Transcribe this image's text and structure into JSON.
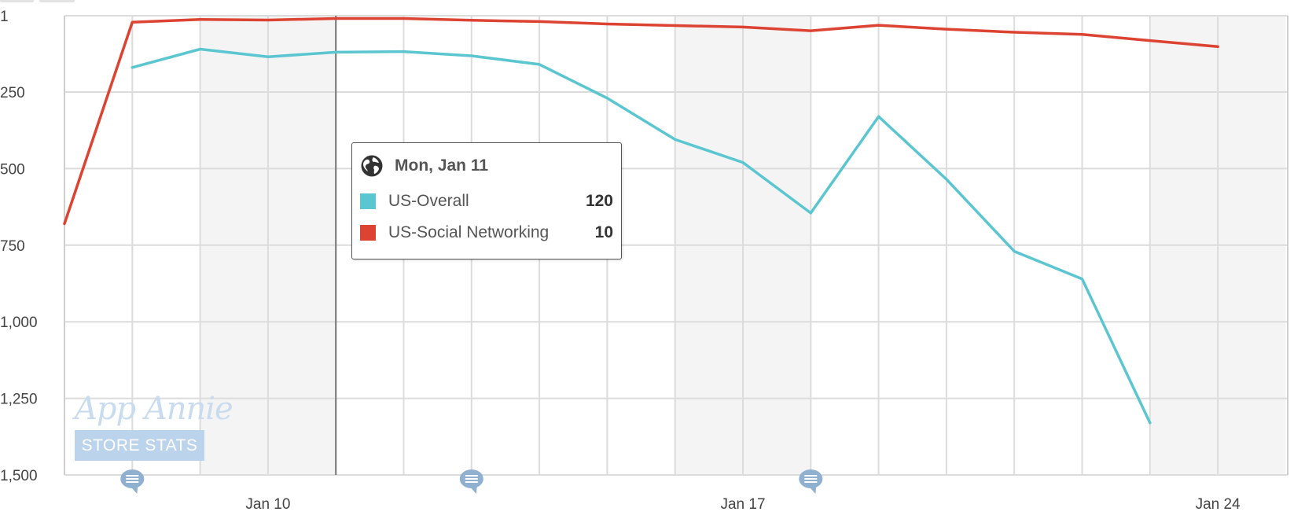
{
  "chart_data": {
    "type": "line",
    "y_reversed": true,
    "ylim": [
      1,
      1500
    ],
    "ytick_labels": [
      "1",
      "250",
      "500",
      "750",
      "1,000",
      "1,250",
      "1,500"
    ],
    "ytick_values": [
      1,
      250,
      500,
      750,
      1000,
      1250,
      1500
    ],
    "xtick_labels": [
      "Jan 10",
      "Jan 17",
      "Jan 24"
    ],
    "xtick_dates": [
      "2016-01-10",
      "2016-01-17",
      "2016-01-24"
    ],
    "dates": [
      "2016-01-07",
      "2016-01-08",
      "2016-01-09",
      "2016-01-10",
      "2016-01-11",
      "2016-01-12",
      "2016-01-13",
      "2016-01-14",
      "2016-01-15",
      "2016-01-16",
      "2016-01-17",
      "2016-01-18",
      "2016-01-19",
      "2016-01-20",
      "2016-01-21",
      "2016-01-22",
      "2016-01-23",
      "2016-01-24"
    ],
    "series": [
      {
        "name": "US-Overall",
        "color": "#5bc6d0",
        "values": [
          null,
          170,
          110,
          135,
          120,
          118,
          132,
          160,
          270,
          405,
          480,
          645,
          330,
          535,
          770,
          860,
          1330,
          null
        ]
      },
      {
        "name": "US-Social Networking",
        "color": "#dc4332",
        "values": [
          680,
          22,
          13,
          15,
          10,
          10,
          16,
          20,
          28,
          33,
          38,
          50,
          32,
          45,
          55,
          62,
          82,
          102
        ]
      }
    ],
    "gridlines": true,
    "shaded_weekends": true,
    "crosshair_date": "2016-01-11",
    "annotation_markers": [
      "2016-01-08",
      "2016-01-13",
      "2016-01-18"
    ]
  },
  "tooltip": {
    "date": "Mon, Jan 11",
    "icon": "globe-icon",
    "rows": [
      {
        "name": "US-Overall",
        "value": "120",
        "color": "#5bc6d0"
      },
      {
        "name": "US-Social Networking",
        "value": "10",
        "color": "#dc4332"
      }
    ]
  },
  "watermark": {
    "title": "App Annie",
    "subtitle": "STORE STATS"
  }
}
